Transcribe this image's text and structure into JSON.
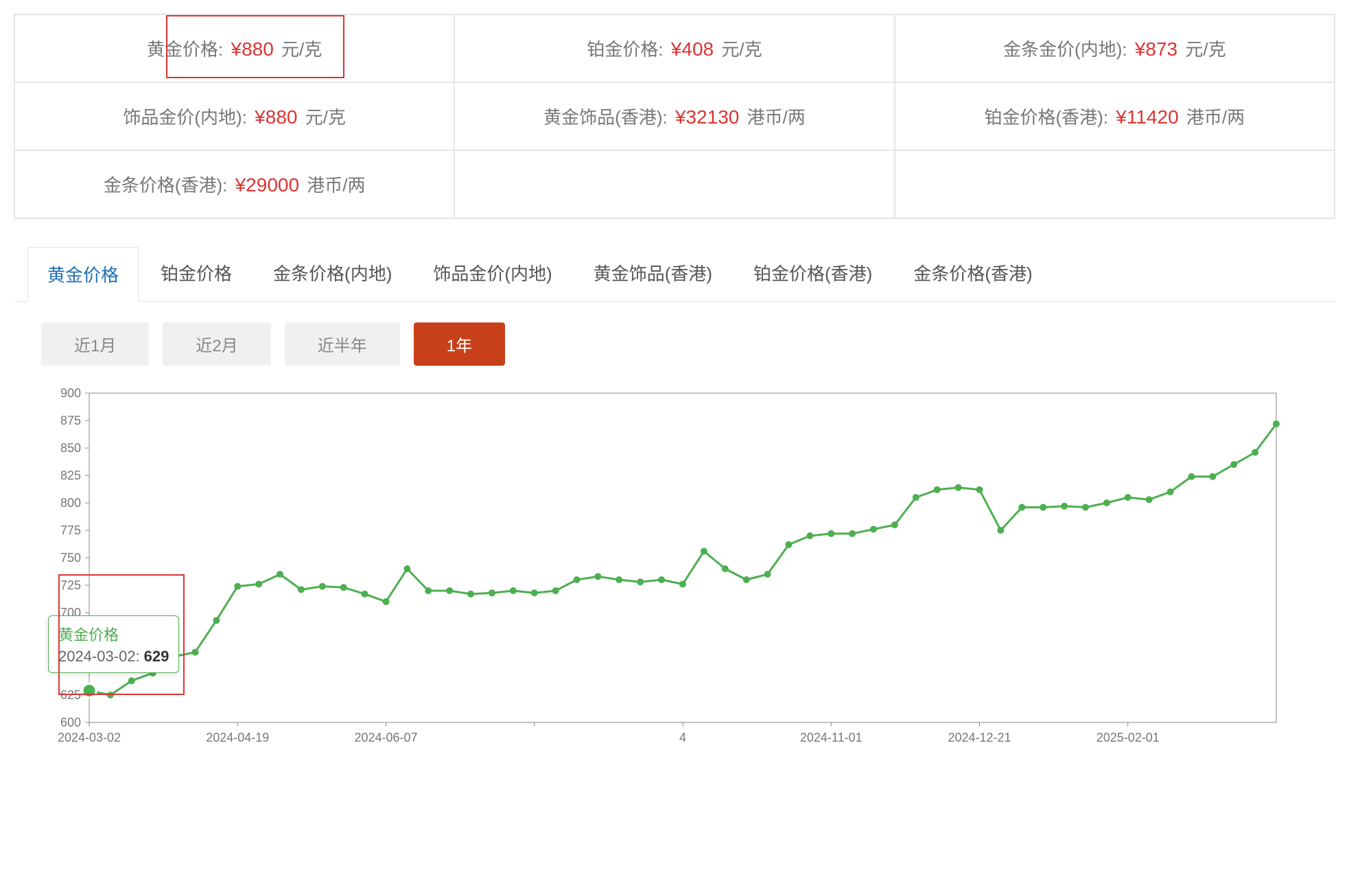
{
  "price_grid": {
    "cells": [
      {
        "label": "黄金价格:",
        "value": "¥880",
        "unit": "元/克",
        "highlight": true
      },
      {
        "label": "铂金价格:",
        "value": "¥408",
        "unit": "元/克"
      },
      {
        "label": "金条金价(内地):",
        "value": "¥873",
        "unit": "元/克"
      },
      {
        "label": "饰品金价(内地):",
        "value": "¥880",
        "unit": "元/克"
      },
      {
        "label": "黄金饰品(香港):",
        "value": "¥32130",
        "unit": "港币/两"
      },
      {
        "label": "铂金价格(香港):",
        "value": "¥11420",
        "unit": "港币/两"
      },
      {
        "label": "金条价格(香港):",
        "value": "¥29000",
        "unit": "港币/两"
      }
    ]
  },
  "tabs": {
    "items": [
      {
        "label": "黄金价格",
        "active": true
      },
      {
        "label": "铂金价格"
      },
      {
        "label": "金条价格(内地)"
      },
      {
        "label": "饰品金价(内地)"
      },
      {
        "label": "黄金饰品(香港)"
      },
      {
        "label": "铂金价格(香港)"
      },
      {
        "label": "金条价格(香港)"
      }
    ]
  },
  "range_buttons": {
    "items": [
      {
        "label": "近1月"
      },
      {
        "label": "近2月"
      },
      {
        "label": "近半年"
      },
      {
        "label": "1年",
        "active": true
      }
    ]
  },
  "chart": {
    "type": "line",
    "line_color": "#4caf50",
    "marker_color": "#4caf50",
    "marker_size": 5,
    "line_width": 3,
    "background_color": "#ffffff",
    "grid_color": "#dddddd",
    "axis_color": "#888888",
    "tick_fontsize": 18,
    "tick_color": "#777777",
    "ylim": [
      600,
      900
    ],
    "ytick_step": 25,
    "yticks": [
      600,
      625,
      650,
      675,
      700,
      725,
      750,
      775,
      800,
      825,
      850,
      875,
      900
    ],
    "xticks": [
      "2024-03-02",
      "2024-04-19",
      "2024-06-07",
      "",
      "4",
      "2024-11-01",
      "2024-12-21",
      "2025-02-01"
    ],
    "xtick_indices": [
      0,
      7,
      14,
      21,
      28,
      35,
      42,
      49
    ],
    "values": [
      629,
      625,
      638,
      645,
      660,
      664,
      693,
      724,
      726,
      735,
      721,
      724,
      723,
      717,
      710,
      740,
      720,
      720,
      717,
      718,
      720,
      718,
      720,
      730,
      733,
      730,
      728,
      730,
      726,
      756,
      740,
      730,
      735,
      762,
      770,
      772,
      772,
      776,
      780,
      805,
      812,
      814,
      812,
      775,
      796,
      796,
      797,
      796,
      800,
      805,
      803,
      810,
      824,
      824,
      835,
      846,
      872
    ],
    "tooltip": {
      "title": "黄金价格",
      "date": "2024-03-02:",
      "value": "629",
      "point_index": 0
    },
    "highlight_box": {
      "x_start": 0,
      "x_end": 4.5,
      "y_start": 650,
      "y_end": 735
    }
  }
}
